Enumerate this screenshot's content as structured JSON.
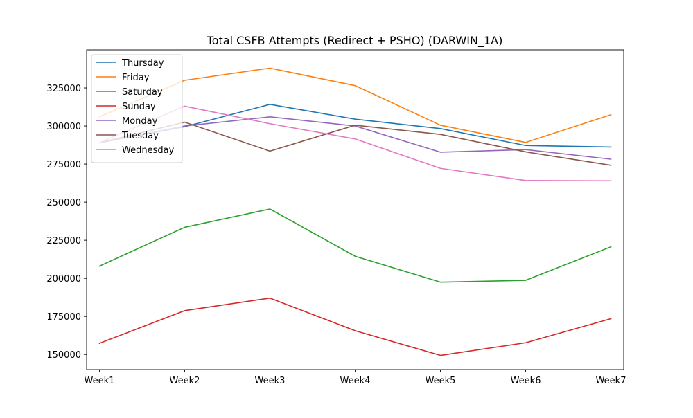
{
  "chart_data": {
    "type": "line",
    "title": "Total CSFB Attempts (Redirect + PSHO) (DARWIN_1A)",
    "xlabel": "",
    "ylabel": "",
    "categories": [
      "Week1",
      "Week2",
      "Week3",
      "Week4",
      "Week5",
      "Week6",
      "Week7"
    ],
    "ylim": [
      140100,
      350000
    ],
    "yticks": [
      150000,
      175000,
      200000,
      225000,
      250000,
      275000,
      300000,
      325000
    ],
    "ytick_labels": [
      "150000",
      "175000",
      "200000",
      "225000",
      "250000",
      "275000",
      "300000",
      "325000"
    ],
    "grid": false,
    "legend_position": "top-left",
    "series": [
      {
        "name": "Thursday",
        "color": "#1f77b4",
        "values": [
          289000,
          299500,
          314200,
          304500,
          298300,
          287200,
          286200
        ]
      },
      {
        "name": "Friday",
        "color": "#ff7f0e",
        "values": [
          306000,
          330000,
          338000,
          326500,
          300500,
          289200,
          307400
        ]
      },
      {
        "name": "Saturday",
        "color": "#2ca02c",
        "values": [
          208000,
          233500,
          245500,
          214500,
          197500,
          198700,
          220700
        ]
      },
      {
        "name": "Sunday",
        "color": "#d62728",
        "values": [
          157300,
          178800,
          187000,
          165600,
          149400,
          157700,
          173500
        ]
      },
      {
        "name": "Monday",
        "color": "#9467bd",
        "values": [
          289000,
          300000,
          306000,
          300000,
          282800,
          284500,
          278200
        ]
      },
      {
        "name": "Tuesday",
        "color": "#8c564b",
        "values": [
          289000,
          302500,
          283500,
          300500,
          294500,
          283000,
          274200
        ]
      },
      {
        "name": "Wednesday",
        "color": "#e377c2",
        "values": [
          289000,
          313000,
          301500,
          291500,
          272200,
          264200,
          264000
        ]
      }
    ]
  }
}
